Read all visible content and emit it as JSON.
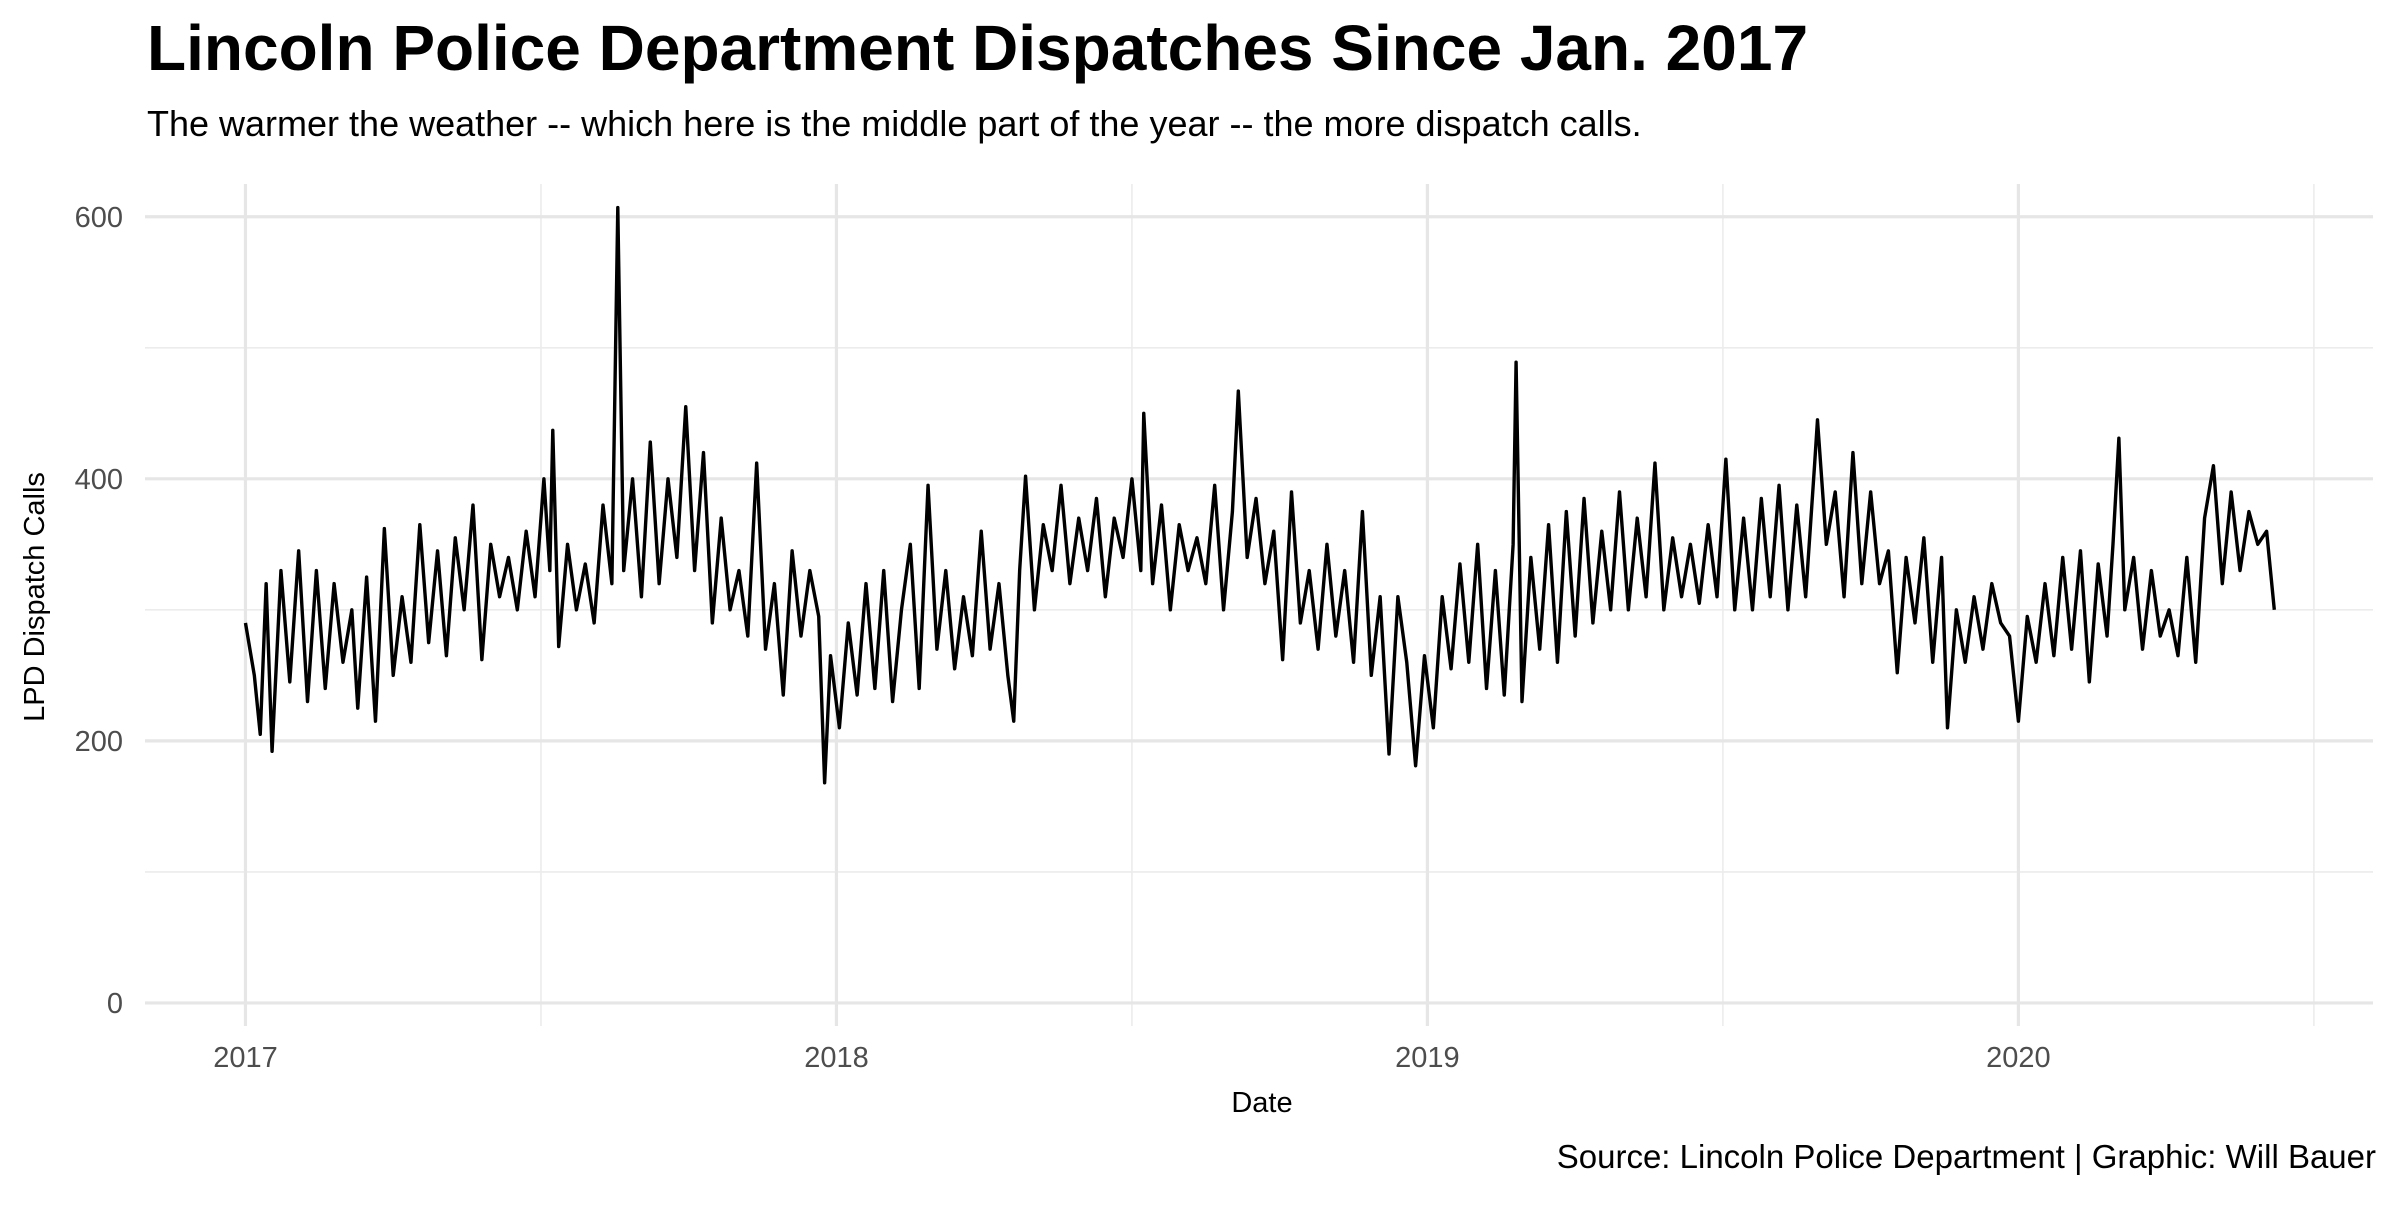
{
  "chart_data": {
    "type": "line",
    "title": "Lincoln Police Department Dispatches Since Jan. 2017",
    "subtitle": "The warmer the weather -- which here is the middle part of the year -- the more dispatch calls.",
    "x_label": "Date",
    "y_label": "LPD Dispatch Calls",
    "caption": "Source: Lincoln Police Department | Graphic: Will Bauer",
    "color": "#000000",
    "grid": true,
    "xlim": [
      2016.83,
      2020.6
    ],
    "xticks": [
      2017,
      2018,
      2019,
      2020
    ],
    "x_minor_ticks": [
      2017.5,
      2018.5,
      2019.5,
      2020.5
    ],
    "ylim": [
      -17.6,
      625
    ],
    "yticks": [
      0,
      200,
      400,
      600
    ],
    "y_minor_ticks": [
      100,
      300,
      500
    ],
    "x": [
      2017.0,
      2017.015,
      2017.025,
      2017.035,
      2017.045,
      2017.06,
      2017.075,
      2017.09,
      2017.105,
      2017.12,
      2017.135,
      2017.15,
      2017.165,
      2017.18,
      2017.19,
      2017.205,
      2017.22,
      2017.235,
      2017.25,
      2017.265,
      2017.28,
      2017.295,
      2017.31,
      2017.325,
      2017.34,
      2017.355,
      2017.37,
      2017.385,
      2017.4,
      2017.415,
      2017.43,
      2017.445,
      2017.46,
      2017.475,
      2017.49,
      2017.505,
      2017.515,
      2017.52,
      2017.53,
      2017.545,
      2017.56,
      2017.575,
      2017.59,
      2017.605,
      2017.62,
      2017.63,
      2017.64,
      2017.655,
      2017.67,
      2017.685,
      2017.7,
      2017.715,
      2017.73,
      2017.745,
      2017.76,
      2017.775,
      2017.79,
      2017.805,
      2017.82,
      2017.835,
      2017.85,
      2017.865,
      2017.88,
      2017.895,
      2017.91,
      2017.925,
      2017.94,
      2017.955,
      2017.97,
      2017.98,
      2017.99,
      2018.005,
      2018.02,
      2018.035,
      2018.05,
      2018.065,
      2018.08,
      2018.095,
      2018.11,
      2018.125,
      2018.14,
      2018.155,
      2018.17,
      2018.185,
      2018.2,
      2018.215,
      2018.23,
      2018.245,
      2018.26,
      2018.275,
      2018.29,
      2018.3,
      2018.31,
      2018.32,
      2018.335,
      2018.35,
      2018.365,
      2018.38,
      2018.395,
      2018.41,
      2018.425,
      2018.44,
      2018.455,
      2018.47,
      2018.485,
      2018.5,
      2018.515,
      2018.52,
      2018.535,
      2018.55,
      2018.565,
      2018.58,
      2018.595,
      2018.61,
      2018.625,
      2018.64,
      2018.655,
      2018.67,
      2018.68,
      2018.695,
      2018.71,
      2018.725,
      2018.74,
      2018.755,
      2018.77,
      2018.785,
      2018.8,
      2018.815,
      2018.83,
      2018.845,
      2018.86,
      2018.875,
      2018.89,
      2018.905,
      2018.92,
      2018.935,
      2018.95,
      2018.965,
      2018.98,
      2018.995,
      2019.01,
      2019.025,
      2019.04,
      2019.055,
      2019.07,
      2019.085,
      2019.1,
      2019.115,
      2019.13,
      2019.145,
      2019.15,
      2019.16,
      2019.175,
      2019.19,
      2019.205,
      2019.22,
      2019.235,
      2019.25,
      2019.265,
      2019.28,
      2019.295,
      2019.31,
      2019.325,
      2019.34,
      2019.355,
      2019.37,
      2019.385,
      2019.4,
      2019.415,
      2019.43,
      2019.445,
      2019.46,
      2019.475,
      2019.49,
      2019.505,
      2019.52,
      2019.535,
      2019.55,
      2019.565,
      2019.58,
      2019.595,
      2019.61,
      2019.625,
      2019.64,
      2019.655,
      2019.66,
      2019.675,
      2019.69,
      2019.705,
      2019.72,
      2019.735,
      2019.75,
      2019.765,
      2019.78,
      2019.795,
      2019.81,
      2019.825,
      2019.84,
      2019.855,
      2019.87,
      2019.88,
      2019.895,
      2019.91,
      2019.925,
      2019.94,
      2019.955,
      2019.97,
      2019.985,
      2020.0,
      2020.015,
      2020.03,
      2020.045,
      2020.06,
      2020.075,
      2020.09,
      2020.105,
      2020.12,
      2020.135,
      2020.15,
      2020.16,
      2020.17,
      2020.18,
      2020.195,
      2020.21,
      2020.225,
      2020.24,
      2020.255,
      2020.27,
      2020.285,
      2020.3,
      2020.315,
      2020.33,
      2020.345,
      2020.36,
      2020.375,
      2020.39,
      2020.405,
      2020.42,
      2020.433
    ],
    "values": [
      290,
      250,
      205,
      320,
      192,
      330,
      245,
      345,
      230,
      330,
      240,
      320,
      260,
      300,
      225,
      325,
      215,
      362,
      250,
      310,
      260,
      365,
      275,
      345,
      265,
      355,
      300,
      380,
      262,
      350,
      310,
      340,
      300,
      360,
      310,
      400,
      330,
      437,
      272,
      350,
      300,
      335,
      290,
      380,
      320,
      607,
      330,
      400,
      310,
      428,
      320,
      400,
      340,
      455,
      330,
      420,
      290,
      370,
      300,
      330,
      280,
      412,
      270,
      320,
      235,
      345,
      280,
      330,
      295,
      168,
      265,
      210,
      290,
      235,
      320,
      240,
      330,
      230,
      300,
      350,
      240,
      395,
      270,
      330,
      255,
      310,
      265,
      360,
      270,
      320,
      250,
      215,
      330,
      402,
      300,
      365,
      330,
      395,
      320,
      370,
      330,
      385,
      310,
      370,
      340,
      400,
      330,
      450,
      320,
      380,
      300,
      365,
      330,
      355,
      320,
      395,
      300,
      375,
      467,
      340,
      385,
      320,
      360,
      262,
      390,
      290,
      330,
      270,
      350,
      280,
      330,
      260,
      375,
      250,
      310,
      190,
      310,
      260,
      181,
      265,
      210,
      310,
      255,
      335,
      260,
      350,
      240,
      330,
      235,
      350,
      489,
      230,
      340,
      270,
      365,
      260,
      375,
      280,
      385,
      290,
      360,
      300,
      390,
      300,
      370,
      310,
      412,
      300,
      355,
      310,
      350,
      305,
      365,
      310,
      415,
      300,
      370,
      300,
      385,
      310,
      395,
      300,
      380,
      310,
      410,
      445,
      350,
      390,
      310,
      420,
      320,
      390,
      320,
      345,
      252,
      340,
      290,
      355,
      260,
      340,
      210,
      300,
      260,
      310,
      270,
      320,
      290,
      280,
      215,
      295,
      260,
      320,
      265,
      340,
      270,
      345,
      245,
      335,
      280,
      350,
      431,
      300,
      340,
      270,
      330,
      280,
      300,
      265,
      340,
      260,
      370,
      410,
      320,
      390,
      330,
      375,
      350,
      360,
      300
    ]
  }
}
